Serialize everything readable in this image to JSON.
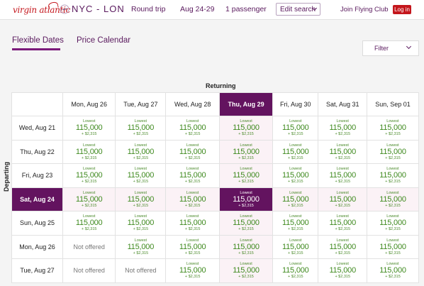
{
  "header": {
    "brand": "virgin atlantic",
    "route": "NYC - LON",
    "trip_type": "Round trip",
    "dates": "Aug 24-29",
    "passengers": "1 passenger",
    "edit_search": "Edit search",
    "join": "Join Flying Club",
    "login": "Log in",
    "accent": "#5a1a5e",
    "brand_red": "#c4161c"
  },
  "tabs": [
    {
      "label": "Flexible Dates",
      "active": true
    },
    {
      "label": "Price Calendar",
      "active": false
    }
  ],
  "filter_label": "Filter",
  "grid": {
    "returning_label": "Returning",
    "departing_label": "Departing",
    "return_dates": [
      "Mon, Aug 26",
      "Tue, Aug 27",
      "Wed, Aug 28",
      "Thu, Aug 29",
      "Fri, Aug 30",
      "Sat, Aug 31",
      "Sun, Sep 01"
    ],
    "depart_dates": [
      "Wed, Aug 21",
      "Thu, Aug 22",
      "Fri, Aug 23",
      "Sat, Aug 24",
      "Sun, Aug 25",
      "Mon, Aug 26",
      "Tue, Aug 27"
    ],
    "fare": {
      "label": "Lowest",
      "points": "115,000",
      "tax": "+ $2,315"
    },
    "not_offered": "Not offered",
    "selected": {
      "depart": "Sat, Aug 24",
      "return": "Thu, Aug 29"
    }
  }
}
